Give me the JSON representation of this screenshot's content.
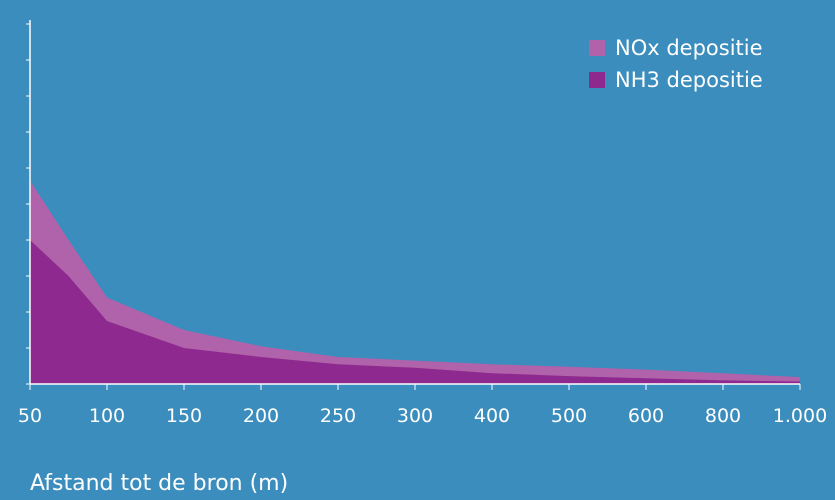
{
  "chart_data": {
    "type": "area",
    "stacked": true,
    "x": [
      "50",
      "75",
      "100",
      "150",
      "200",
      "250",
      "300",
      "400",
      "500",
      "600",
      "800",
      "1.000"
    ],
    "series": [
      {
        "name": "NH3 depositie",
        "values": [
          40.0,
          30.0,
          17.5,
          10.0,
          7.5,
          5.5,
          4.5,
          3.0,
          2.2,
          1.6,
          1.0,
          0.7
        ],
        "color": "#8e2a8f"
      },
      {
        "name": "NOx depositie",
        "values": [
          56.5,
          40.0,
          24.0,
          15.0,
          10.5,
          7.5,
          6.5,
          5.5,
          4.8,
          4.0,
          3.0,
          1.9
        ],
        "color": "#b063aa"
      }
    ],
    "ylim": [
      0,
      100
    ],
    "yticks": 11,
    "title": "",
    "xlabel": "Afstand tot de bron (m)",
    "ylabel": "",
    "legend_position": "top-right",
    "grid": false
  },
  "legend": {
    "nox_label": "NOx depositie",
    "nh3_label": "NH3 depositie"
  },
  "axis": {
    "xlabel": "Afstand tot de bron (m)",
    "tick_labels": [
      "50",
      "100",
      "150",
      "200",
      "250",
      "300",
      "400",
      "500",
      "600",
      "800",
      "1.000"
    ]
  },
  "colors": {
    "background": "#3a8dbd",
    "axis": "#ffffff"
  }
}
